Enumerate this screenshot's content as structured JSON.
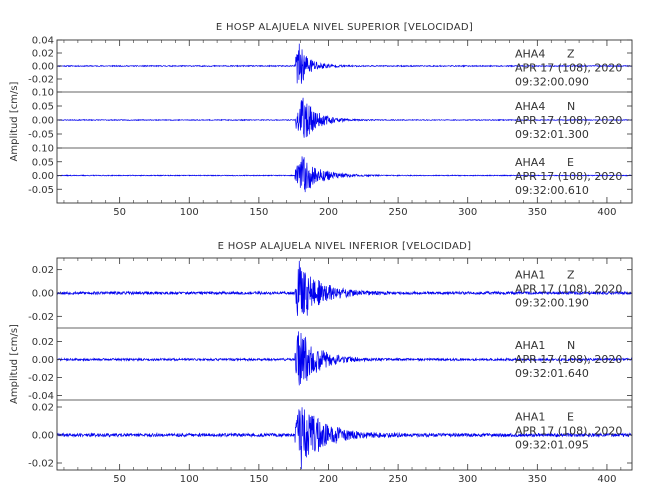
{
  "chart_data": [
    {
      "type": "line",
      "title": "E HOSP ALAJUELA NIVEL SUPERIOR [VELOCIDAD]",
      "ylabel": "Amplitud [cm/s]",
      "xlim": [
        5,
        418
      ],
      "x_ticks": [
        50,
        100,
        150,
        200,
        250,
        300,
        350,
        400
      ],
      "grid": false,
      "color": "#0000ee",
      "panels": [
        {
          "station": "AHA4",
          "component": "Z",
          "date": "APR 17 (108), 2020",
          "time": "09:32:00.090",
          "ylim": [
            -0.04,
            0.04
          ],
          "y_ticks": [
            -0.02,
            0.0,
            0.02,
            0.04
          ],
          "y_tick_labels": [
            "-0.02",
            "0.00",
            "0.02",
            "0.04"
          ],
          "trace": {
            "onset": 176,
            "peak_time": 178,
            "peak": 0.038,
            "noise": 0.0008,
            "decay": 8,
            "seed": 11
          }
        },
        {
          "station": "AHA4",
          "component": "N",
          "date": "APR 17 (108), 2020",
          "time": "09:32:01.300",
          "ylim": [
            -0.1,
            0.1
          ],
          "y_ticks": [
            -0.05,
            0.0,
            0.05,
            0.1
          ],
          "y_tick_labels": [
            "-0.05",
            "0.00",
            "0.05",
            "0.10"
          ],
          "trace": {
            "onset": 176,
            "peak_time": 181,
            "peak": 0.085,
            "noise": 0.0015,
            "decay": 10,
            "seed": 23
          }
        },
        {
          "station": "AHA4",
          "component": "E",
          "date": "APR 17 (108), 2020",
          "time": "09:32:00.610",
          "ylim": [
            -0.1,
            0.1
          ],
          "y_ticks": [
            -0.05,
            0.0,
            0.05,
            0.1
          ],
          "y_tick_labels": [
            "-0.05",
            "0.00",
            "0.05",
            "0.10"
          ],
          "trace": {
            "onset": 176,
            "peak_time": 181,
            "peak": 0.075,
            "noise": 0.0015,
            "decay": 12,
            "seed": 37
          }
        }
      ]
    },
    {
      "type": "line",
      "title": "E HOSP ALAJUELA NIVEL INFERIOR [VELOCIDAD]",
      "ylabel": "Amplitud [cm/s]",
      "xlim": [
        5,
        418
      ],
      "x_ticks": [
        50,
        100,
        150,
        200,
        250,
        300,
        350,
        400
      ],
      "grid": false,
      "color": "#0000ee",
      "panels": [
        {
          "station": "AHA1",
          "component": "Z",
          "date": "APR 17 (108), 2020",
          "time": "09:32:00.190",
          "ylim": [
            -0.03,
            0.03
          ],
          "y_ticks": [
            -0.02,
            0.0,
            0.02
          ],
          "y_tick_labels": [
            "-0.02",
            "0.00",
            "0.02"
          ],
          "trace": {
            "onset": 176,
            "peak_time": 179,
            "peak": 0.028,
            "noise": 0.0012,
            "decay": 14,
            "seed": 53
          }
        },
        {
          "station": "AHA1",
          "component": "N",
          "date": "APR 17 (108), 2020",
          "time": "09:32:01.640",
          "ylim": [
            -0.045,
            0.035
          ],
          "y_ticks": [
            -0.04,
            -0.02,
            0.0,
            0.02
          ],
          "y_tick_labels": [
            "-0.04",
            "-0.02",
            "0.00",
            "0.02"
          ],
          "trace": {
            "onset": 176,
            "peak_time": 179,
            "peak": 0.035,
            "noise": 0.0012,
            "decay": 13,
            "seed": 71
          }
        },
        {
          "station": "AHA1",
          "component": "E",
          "date": "APR 17 (108), 2020",
          "time": "09:32:01.095",
          "ylim": [
            -0.025,
            0.025
          ],
          "y_ticks": [
            -0.02,
            0.0,
            0.02
          ],
          "y_tick_labels": [
            "-0.02",
            "0.00",
            "0.02"
          ],
          "trace": {
            "onset": 176,
            "peak_time": 180,
            "peak": 0.024,
            "noise": 0.0012,
            "decay": 16,
            "seed": 89
          }
        }
      ]
    }
  ]
}
